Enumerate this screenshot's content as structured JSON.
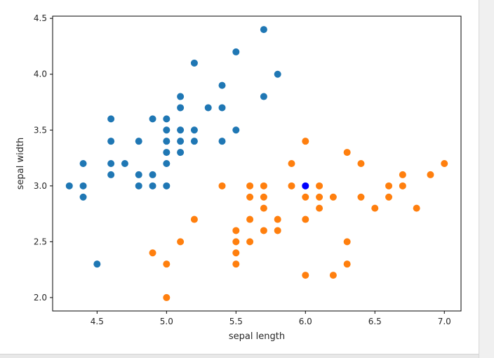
{
  "chart_data": {
    "type": "scatter",
    "title": "",
    "xlabel": "sepal length",
    "ylabel": "sepal width",
    "xlim": [
      4.18,
      7.12
    ],
    "ylim": [
      1.88,
      4.52
    ],
    "x_ticks": [
      4.5,
      5.0,
      5.5,
      6.0,
      6.5,
      7.0
    ],
    "x_tick_labels": [
      "4.5",
      "5.0",
      "5.5",
      "6.0",
      "6.5",
      "7.0"
    ],
    "y_ticks": [
      2.0,
      2.5,
      3.0,
      3.5,
      4.0,
      4.5
    ],
    "y_tick_labels": [
      "2.0",
      "2.5",
      "3.0",
      "3.5",
      "4.0",
      "4.5"
    ],
    "grid": false,
    "legend": "none",
    "series": [
      {
        "color": "#1f77b4",
        "points": [
          [
            4.3,
            3.0
          ],
          [
            4.4,
            2.9
          ],
          [
            4.4,
            3.0
          ],
          [
            4.4,
            3.2
          ],
          [
            4.5,
            2.3
          ],
          [
            4.6,
            3.1
          ],
          [
            4.6,
            3.2
          ],
          [
            4.6,
            3.4
          ],
          [
            4.6,
            3.6
          ],
          [
            4.7,
            3.2
          ],
          [
            4.8,
            3.0
          ],
          [
            4.8,
            3.1
          ],
          [
            4.8,
            3.4
          ],
          [
            4.9,
            3.0
          ],
          [
            4.9,
            3.1
          ],
          [
            4.9,
            3.6
          ],
          [
            5.0,
            3.0
          ],
          [
            5.0,
            3.2
          ],
          [
            5.0,
            3.3
          ],
          [
            5.0,
            3.4
          ],
          [
            5.0,
            3.5
          ],
          [
            5.0,
            3.6
          ],
          [
            5.1,
            3.3
          ],
          [
            5.1,
            3.4
          ],
          [
            5.1,
            3.5
          ],
          [
            5.1,
            3.7
          ],
          [
            5.1,
            3.8
          ],
          [
            5.2,
            3.4
          ],
          [
            5.2,
            3.5
          ],
          [
            5.2,
            4.1
          ],
          [
            5.3,
            3.7
          ],
          [
            5.4,
            3.4
          ],
          [
            5.4,
            3.7
          ],
          [
            5.4,
            3.9
          ],
          [
            5.5,
            3.5
          ],
          [
            5.5,
            4.2
          ],
          [
            5.7,
            3.8
          ],
          [
            5.7,
            4.4
          ],
          [
            5.8,
            4.0
          ]
        ]
      },
      {
        "color": "#ff7f0e",
        "points": [
          [
            4.9,
            2.4
          ],
          [
            5.0,
            2.0
          ],
          [
            5.0,
            2.3
          ],
          [
            5.1,
            2.5
          ],
          [
            5.2,
            2.7
          ],
          [
            5.4,
            3.0
          ],
          [
            5.5,
            2.3
          ],
          [
            5.5,
            2.4
          ],
          [
            5.5,
            2.5
          ],
          [
            5.5,
            2.6
          ],
          [
            5.6,
            2.5
          ],
          [
            5.6,
            2.7
          ],
          [
            5.6,
            2.9
          ],
          [
            5.6,
            3.0
          ],
          [
            5.7,
            2.6
          ],
          [
            5.7,
            2.8
          ],
          [
            5.7,
            2.9
          ],
          [
            5.7,
            3.0
          ],
          [
            5.8,
            2.6
          ],
          [
            5.8,
            2.7
          ],
          [
            5.9,
            3.0
          ],
          [
            5.9,
            3.2
          ],
          [
            6.0,
            2.2
          ],
          [
            6.0,
            2.7
          ],
          [
            6.0,
            2.9
          ],
          [
            6.0,
            3.4
          ],
          [
            6.1,
            2.8
          ],
          [
            6.1,
            2.9
          ],
          [
            6.1,
            3.0
          ],
          [
            6.2,
            2.2
          ],
          [
            6.2,
            2.9
          ],
          [
            6.3,
            2.3
          ],
          [
            6.3,
            2.5
          ],
          [
            6.3,
            3.3
          ],
          [
            6.4,
            2.9
          ],
          [
            6.4,
            3.2
          ],
          [
            6.5,
            2.8
          ],
          [
            6.6,
            2.9
          ],
          [
            6.6,
            3.0
          ],
          [
            6.7,
            3.0
          ],
          [
            6.7,
            3.1
          ],
          [
            6.8,
            2.8
          ],
          [
            6.9,
            3.1
          ],
          [
            7.0,
            3.2
          ]
        ]
      },
      {
        "color": "#0000ff",
        "points": [
          [
            6.0,
            3.0
          ]
        ]
      }
    ]
  }
}
